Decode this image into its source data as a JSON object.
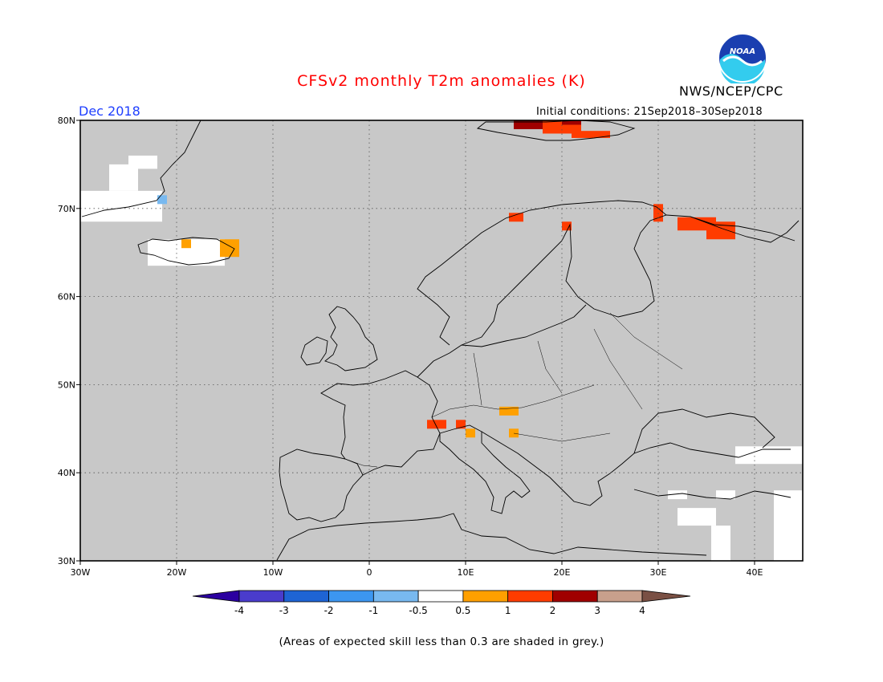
{
  "title": "CFSv2 monthly T2m anomalies (K)",
  "period": "Dec 2018",
  "initial_conditions": "Initial conditions: 21Sep2018–30Sep2018",
  "agency": "NWS/NCEP/CPC",
  "logo_text": "NOAA",
  "footnote": "(Areas of expected skill less than 0.3 are shaded in grey.)",
  "map": {
    "region": "Europe",
    "lon_range": [
      -30,
      45
    ],
    "lat_range": [
      30,
      80
    ],
    "lon_ticks": [
      "30W",
      "20W",
      "10W",
      "0",
      "10E",
      "20E",
      "30E",
      "40E"
    ],
    "lat_ticks": [
      "30N",
      "40N",
      "50N",
      "60N",
      "70N",
      "80N"
    ],
    "background_color": "#c8c8c8",
    "grid": "dotted",
    "anomaly_cells": [
      {
        "lon": [
          -19.5,
          -18.5
        ],
        "lat": [
          65.5,
          66.5
        ],
        "class": "0.5-1"
      },
      {
        "lon": [
          -15.5,
          -13.5
        ],
        "lat": [
          64.5,
          66.5
        ],
        "class": "0.5-1"
      },
      {
        "lon": [
          -22,
          -21
        ],
        "lat": [
          70.5,
          71.5
        ],
        "class": "-1--0.5"
      },
      {
        "lon": [
          6,
          8
        ],
        "lat": [
          45,
          46
        ],
        "class": "1-2"
      },
      {
        "lon": [
          9,
          10
        ],
        "lat": [
          45,
          46
        ],
        "class": "1-2"
      },
      {
        "lon": [
          10,
          11
        ],
        "lat": [
          44,
          45
        ],
        "class": "0.5-1"
      },
      {
        "lon": [
          13.5,
          15.5
        ],
        "lat": [
          46.5,
          47.5
        ],
        "class": "0.5-1"
      },
      {
        "lon": [
          14.5,
          15.5
        ],
        "lat": [
          44,
          45
        ],
        "class": "0.5-1"
      },
      {
        "lon": [
          20,
          21
        ],
        "lat": [
          67.5,
          68.5
        ],
        "class": "1-2"
      },
      {
        "lon": [
          29.5,
          30.5
        ],
        "lat": [
          68.5,
          70.5
        ],
        "class": "1-2"
      },
      {
        "lon": [
          32,
          36
        ],
        "lat": [
          67.5,
          69
        ],
        "class": "1-2"
      },
      {
        "lon": [
          35,
          38
        ],
        "lat": [
          66.5,
          68.5
        ],
        "class": "1-2"
      },
      {
        "lon": [
          14.5,
          16
        ],
        "lat": [
          68.5,
          69.5
        ],
        "class": "1-2"
      },
      {
        "lon": [
          15,
          18
        ],
        "lat": [
          79,
          80
        ],
        "class": "2-3"
      },
      {
        "lon": [
          18,
          22
        ],
        "lat": [
          78.5,
          80
        ],
        "class": "1-2"
      },
      {
        "lon": [
          21,
          25
        ],
        "lat": [
          78,
          78.8
        ],
        "class": "1-2"
      },
      {
        "lon": [
          20,
          22
        ],
        "lat": [
          79.5,
          80
        ],
        "class": "2-3"
      }
    ],
    "white_cells": [
      {
        "lon": [
          -23,
          -15
        ],
        "lat": [
          63.5,
          66.5
        ]
      },
      {
        "lon": [
          -30,
          -21.5
        ],
        "lat": [
          68.5,
          72
        ]
      },
      {
        "lon": [
          -27,
          -24
        ],
        "lat": [
          72,
          75
        ]
      },
      {
        "lon": [
          -25,
          -22
        ],
        "lat": [
          74.5,
          76
        ]
      },
      {
        "lon": [
          38,
          45
        ],
        "lat": [
          41,
          43
        ]
      },
      {
        "lon": [
          42,
          45
        ],
        "lat": [
          30,
          38
        ]
      },
      {
        "lon": [
          36,
          38
        ],
        "lat": [
          37,
          38
        ]
      },
      {
        "lon": [
          31,
          33
        ],
        "lat": [
          37,
          38
        ]
      },
      {
        "lon": [
          32,
          36
        ],
        "lat": [
          34,
          36
        ]
      },
      {
        "lon": [
          35.5,
          37.5
        ],
        "lat": [
          30,
          34
        ]
      }
    ]
  },
  "legend": {
    "labels": [
      "-4",
      "-3",
      "-2",
      "-1",
      "-0.5",
      "0.5",
      "1",
      "2",
      "3",
      "4"
    ],
    "colors": [
      "#2b00a0",
      "#4a3ccc",
      "#1e64d4",
      "#3c96f0",
      "#78b9f0",
      "#ffffff",
      "#ffa000",
      "#ff3c00",
      "#a00000",
      "#c8a08c",
      "#7a5044"
    ],
    "class_colors": {
      "-1--0.5": "#78b9f0",
      "0.5-1": "#ffa000",
      "1-2": "#ff3c00",
      "2-3": "#a00000"
    }
  }
}
